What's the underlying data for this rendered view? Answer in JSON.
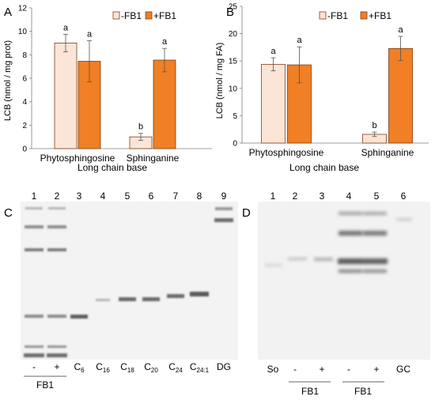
{
  "chart_data": [
    {
      "type": "bar",
      "panel": "A",
      "categories": [
        "Phytosphingosine",
        "Sphinganine"
      ],
      "series": [
        {
          "name": "-FB1",
          "values": [
            9.0,
            1.0
          ],
          "errors": [
            0.75,
            0.3
          ],
          "color": "#fbe5d6"
        },
        {
          "name": "+FB1",
          "values": [
            7.45,
            7.55
          ],
          "errors": [
            1.75,
            1.0
          ],
          "color": "#f07f25"
        }
      ],
      "sig_labels": [
        [
          "a",
          "a"
        ],
        [
          "b",
          "a"
        ]
      ],
      "xlabel": "Long chain base",
      "ylabel": "LCB (nmol / mg prot)",
      "ylim": [
        0,
        12
      ],
      "yticks": [
        "0",
        "2",
        "4",
        "6",
        "8",
        "10",
        "12"
      ],
      "legend_position": "top-right",
      "grid": false
    },
    {
      "type": "bar",
      "panel": "B",
      "categories": [
        "Phytosphingosine",
        "Sphinganine"
      ],
      "series": [
        {
          "name": "-FB1",
          "values": [
            14.4,
            1.6
          ],
          "errors": [
            1.2,
            0.4
          ],
          "color": "#fbe5d6"
        },
        {
          "name": "+FB1",
          "values": [
            14.3,
            17.3
          ],
          "errors": [
            3.3,
            2.2
          ],
          "color": "#f07f25"
        }
      ],
      "sig_labels": [
        [
          "a",
          "a"
        ],
        [
          "b",
          "a"
        ]
      ],
      "xlabel": "Long chain base",
      "ylabel": "LCB (nmol / mg FA)",
      "ylim": [
        0,
        25
      ],
      "yticks": [
        "0",
        "5",
        "10",
        "15",
        "20",
        "25"
      ],
      "legend_position": "top-right",
      "grid": false
    }
  ],
  "gels": {
    "C": {
      "panel": "C",
      "lane_numbers": [
        "1",
        "2",
        "3",
        "4",
        "5",
        "6",
        "7",
        "8",
        "9"
      ],
      "lane_labels": [
        {
          "main": "-",
          "sub": ""
        },
        {
          "main": "+",
          "sub": ""
        },
        {
          "main": "C",
          "sub": "6"
        },
        {
          "main": "C",
          "sub": "16"
        },
        {
          "main": "C",
          "sub": "18"
        },
        {
          "main": "C",
          "sub": "20"
        },
        {
          "main": "C",
          "sub": "24"
        },
        {
          "main": "C",
          "sub": "24:1"
        },
        {
          "main": "DG",
          "sub": ""
        }
      ],
      "group_label": "FB1"
    },
    "D": {
      "panel": "D",
      "lane_numbers": [
        "1",
        "2",
        "3",
        "4",
        "5",
        "6"
      ],
      "lane_labels": [
        "So",
        "-",
        "+",
        "-",
        "+",
        "GC"
      ],
      "group_labels": [
        "FB1",
        "FB1"
      ]
    }
  },
  "colors": {
    "light_bar": "#fbe5d6",
    "dark_bar": "#f07f25",
    "bar_edge": "#7f3f16"
  }
}
